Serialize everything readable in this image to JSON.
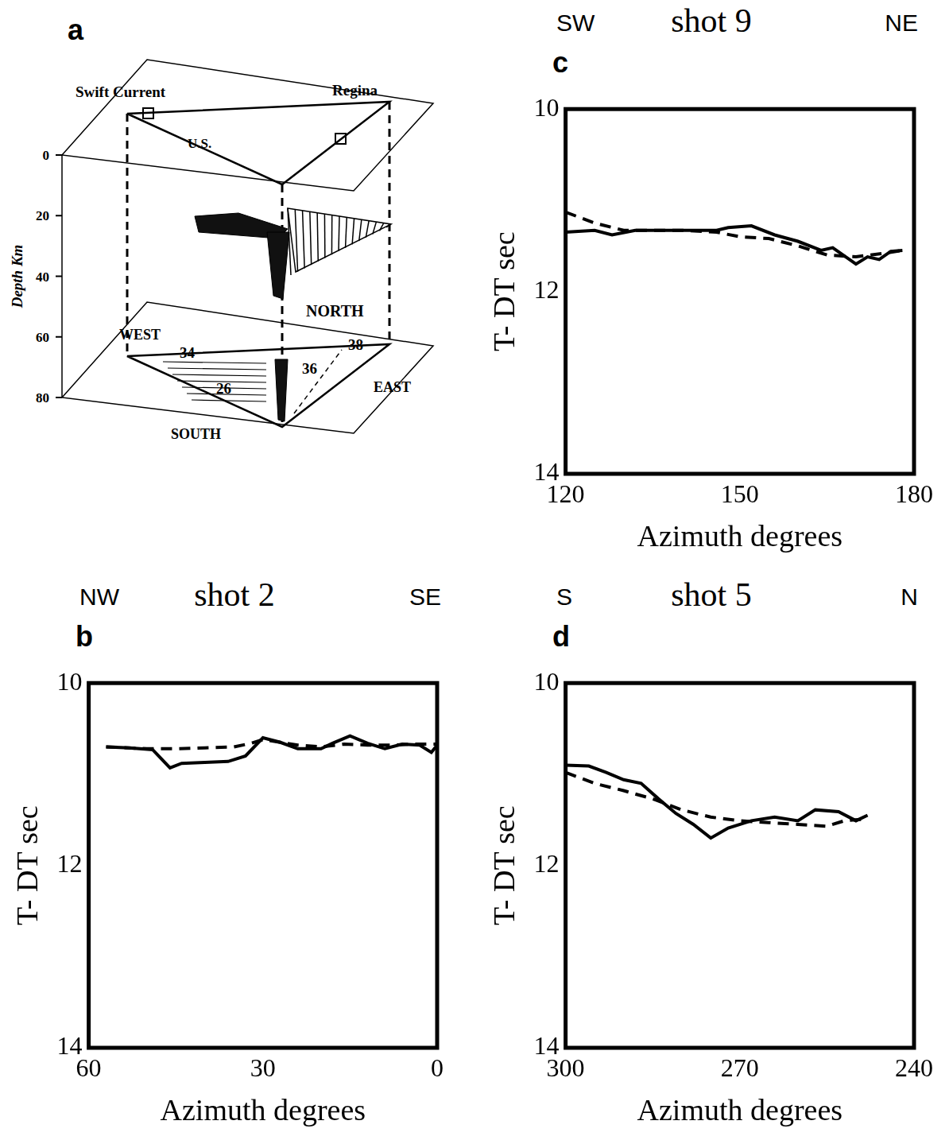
{
  "chart_data": [
    {
      "type": "line",
      "panel_label": "c",
      "title": "shot 9",
      "corner_labels": [
        "SW",
        "NE"
      ],
      "x_label": "Azimuth degrees",
      "y_label": "T- DT sec",
      "xlim": [
        120,
        180
      ],
      "xticks": [
        120,
        150,
        180
      ],
      "ylim": [
        14,
        10
      ],
      "yticks": [
        10,
        12,
        14
      ],
      "grid": false,
      "series": [
        {
          "color": "#000000",
          "line_style": "solid",
          "x": [
            120,
            125,
            128,
            132,
            140,
            146,
            148,
            152,
            156,
            160,
            164,
            166,
            170,
            172,
            174,
            176,
            178
          ],
          "values": [
            11.35,
            11.33,
            11.38,
            11.33,
            11.33,
            11.33,
            11.3,
            11.28,
            11.38,
            11.45,
            11.55,
            11.52,
            11.7,
            11.62,
            11.65,
            11.56,
            11.55
          ]
        },
        {
          "color": "#000000",
          "line_style": "dashed",
          "x": [
            120,
            125,
            130,
            140,
            146,
            150,
            155,
            160,
            165,
            170,
            175,
            178
          ],
          "values": [
            11.13,
            11.25,
            11.33,
            11.33,
            11.35,
            11.4,
            11.42,
            11.5,
            11.6,
            11.62,
            11.58,
            11.55
          ]
        }
      ]
    },
    {
      "type": "line",
      "panel_label": "b",
      "title": "shot 2",
      "corner_labels": [
        "NW",
        "SE"
      ],
      "x_label": "Azimuth degrees",
      "y_label": "T- DT sec",
      "xlim": [
        60,
        0
      ],
      "xticks": [
        60,
        30,
        0
      ],
      "ylim": [
        14,
        10
      ],
      "yticks": [
        10,
        12,
        14
      ],
      "grid": false,
      "series": [
        {
          "color": "#000000",
          "line_style": "solid",
          "x": [
            57,
            53,
            49,
            46,
            44,
            40,
            36,
            33,
            30,
            27,
            24,
            20,
            18,
            15,
            12,
            9,
            6,
            3,
            1,
            0
          ],
          "values": [
            10.7,
            10.71,
            10.73,
            10.93,
            10.88,
            10.87,
            10.86,
            10.8,
            10.6,
            10.65,
            10.72,
            10.72,
            10.66,
            10.58,
            10.66,
            10.72,
            10.67,
            10.68,
            10.76,
            10.68
          ]
        },
        {
          "color": "#000000",
          "line_style": "dashed",
          "x": [
            57,
            50,
            45,
            40,
            35,
            32,
            30,
            27,
            24,
            20,
            16,
            12,
            8,
            4,
            0
          ],
          "values": [
            10.7,
            10.72,
            10.72,
            10.71,
            10.7,
            10.66,
            10.62,
            10.65,
            10.68,
            10.7,
            10.67,
            10.68,
            10.68,
            10.67,
            10.67
          ]
        }
      ]
    },
    {
      "type": "line",
      "panel_label": "d",
      "title": "shot 5",
      "corner_labels": [
        "S",
        "N"
      ],
      "x_label": "Azimuth degrees",
      "y_label": "T- DT sec",
      "xlim": [
        300,
        240
      ],
      "xticks": [
        300,
        270,
        240
      ],
      "ylim": [
        14,
        10
      ],
      "yticks": [
        10,
        12,
        14
      ],
      "grid": false,
      "series": [
        {
          "color": "#000000",
          "line_style": "solid",
          "x": [
            300,
            296,
            293,
            290,
            287,
            284,
            281,
            278,
            275,
            272,
            268,
            264,
            260,
            257,
            253,
            250,
            248
          ],
          "values": [
            10.9,
            10.91,
            10.98,
            11.06,
            11.1,
            11.27,
            11.43,
            11.55,
            11.7,
            11.59,
            11.51,
            11.47,
            11.51,
            11.39,
            11.41,
            11.51,
            11.45
          ]
        },
        {
          "color": "#000000",
          "line_style": "dashed",
          "x": [
            300,
            295,
            290,
            285,
            280,
            275,
            270,
            265,
            260,
            255,
            252,
            248
          ],
          "values": [
            10.98,
            11.1,
            11.18,
            11.27,
            11.39,
            11.47,
            11.51,
            11.53,
            11.55,
            11.57,
            11.51,
            11.49
          ]
        }
      ]
    }
  ],
  "diagram": {
    "panel_label": "a",
    "axis_title": "Depth Km",
    "depth_range": [
      0,
      80
    ],
    "depth_ticks": [
      0,
      20,
      40,
      60,
      80
    ],
    "top_labels": [
      "Swift Current",
      "Regina",
      "U.S."
    ],
    "bottom_labels": [
      "WEST",
      "NORTH",
      "SOUTH",
      "EAST"
    ],
    "contour_labels": [
      "34",
      "26",
      "36",
      "38"
    ]
  }
}
